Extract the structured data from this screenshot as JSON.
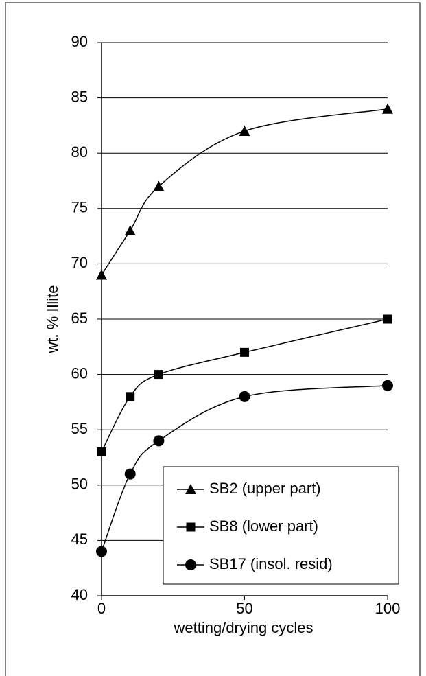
{
  "chart_data": {
    "type": "line",
    "x_label": "wetting/drying cycles",
    "y_label": "wt. % Illite",
    "x": [
      0,
      10,
      20,
      50,
      100
    ],
    "series": [
      {
        "name": "SB2 (upper part)",
        "color": "#000000",
        "marker": "triangle",
        "values": [
          69,
          73,
          77,
          82,
          84
        ]
      },
      {
        "name": "SB8 (lower part)",
        "color": "#000000",
        "marker": "square",
        "values": [
          53,
          58,
          60,
          62,
          65
        ]
      },
      {
        "name": "SB17 (insol. resid)",
        "color": "#000000",
        "marker": "circle",
        "values": [
          44,
          51,
          54,
          58,
          59
        ]
      }
    ],
    "xlim": [
      0,
      100
    ],
    "xticks": [
      0,
      50,
      100
    ],
    "ylim": [
      40,
      90
    ],
    "yticks": [
      40,
      45,
      50,
      55,
      60,
      65,
      70,
      75,
      80,
      85,
      90
    ],
    "grid": true,
    "smooth": true,
    "legend": "lower right"
  }
}
